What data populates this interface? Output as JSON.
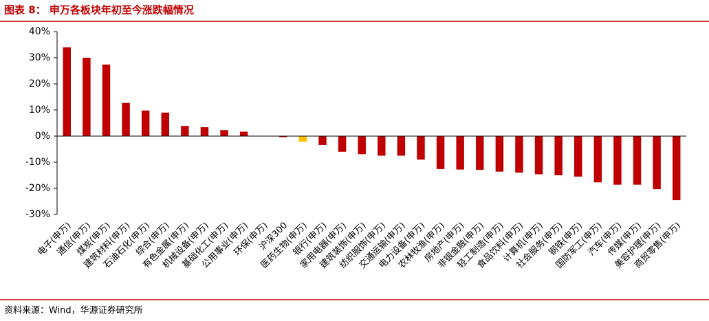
{
  "chart_data": {
    "type": "bar",
    "title": "图表 8： 申万各板块年初至今涨跌幅情况",
    "source": "资料来源：Wind，华源证券研究所",
    "categories": [
      "电子(申万)",
      "通信(申万)",
      "煤炭(申万)",
      "建筑材料(申万)",
      "石油石化(申万)",
      "综合(申万)",
      "有色金属(申万)",
      "机械设备(申万)",
      "基础化工(申万)",
      "公用事业(申万)",
      "环保(申万)",
      "沪深300",
      "医药生物(申万)",
      "银行(申万)",
      "家用电器(申万)",
      "建筑装饰(申万)",
      "纺织服饰(申万)",
      "交通运输(申万)",
      "电力设备(申万)",
      "农林牧渔(申万)",
      "房地产(申万)",
      "非银金融(申万)",
      "轻工制造(申万)",
      "食品饮料(申万)",
      "计算机(申万)",
      "社会服务(申万)",
      "钢铁(申万)",
      "国防军工(申万)",
      "汽车(申万)",
      "传媒(申万)",
      "美容护理(申万)",
      "商贸零售(申万)"
    ],
    "values": [
      34,
      30,
      27.4,
      12.7,
      9.8,
      9,
      3.9,
      3.4,
      2.3,
      1.7,
      0,
      -0.4,
      -2.2,
      -3.4,
      -6,
      -6.9,
      -7.5,
      -7.5,
      -9,
      -12.6,
      -12.8,
      -12.9,
      -13.6,
      -14,
      -14.6,
      -15,
      -15.5,
      -17.7,
      -18.6,
      -18.6,
      -20.3,
      -24.5
    ],
    "colors": [
      "#c00000",
      "#c00000",
      "#c00000",
      "#c00000",
      "#c00000",
      "#c00000",
      "#c00000",
      "#c00000",
      "#c00000",
      "#c00000",
      "#c00000",
      "#c00000",
      "#ffc000",
      "#c00000",
      "#c00000",
      "#c00000",
      "#c00000",
      "#c00000",
      "#c00000",
      "#c00000",
      "#c00000",
      "#c00000",
      "#c00000",
      "#c00000",
      "#c00000",
      "#c00000",
      "#c00000",
      "#c00000",
      "#c00000",
      "#c00000",
      "#c00000",
      "#c00000"
    ],
    "ylim": [
      -30,
      40
    ],
    "yticks": [
      {
        "value": -30,
        "label": "-30%"
      },
      {
        "value": -20,
        "label": "-20%"
      },
      {
        "value": -10,
        "label": "-10%"
      },
      {
        "value": 0,
        "label": "0%"
      },
      {
        "value": 10,
        "label": "10%"
      },
      {
        "value": 20,
        "label": "20%"
      },
      {
        "value": 30,
        "label": "30%"
      },
      {
        "value": 40,
        "label": "40%"
      }
    ],
    "grid": false
  }
}
